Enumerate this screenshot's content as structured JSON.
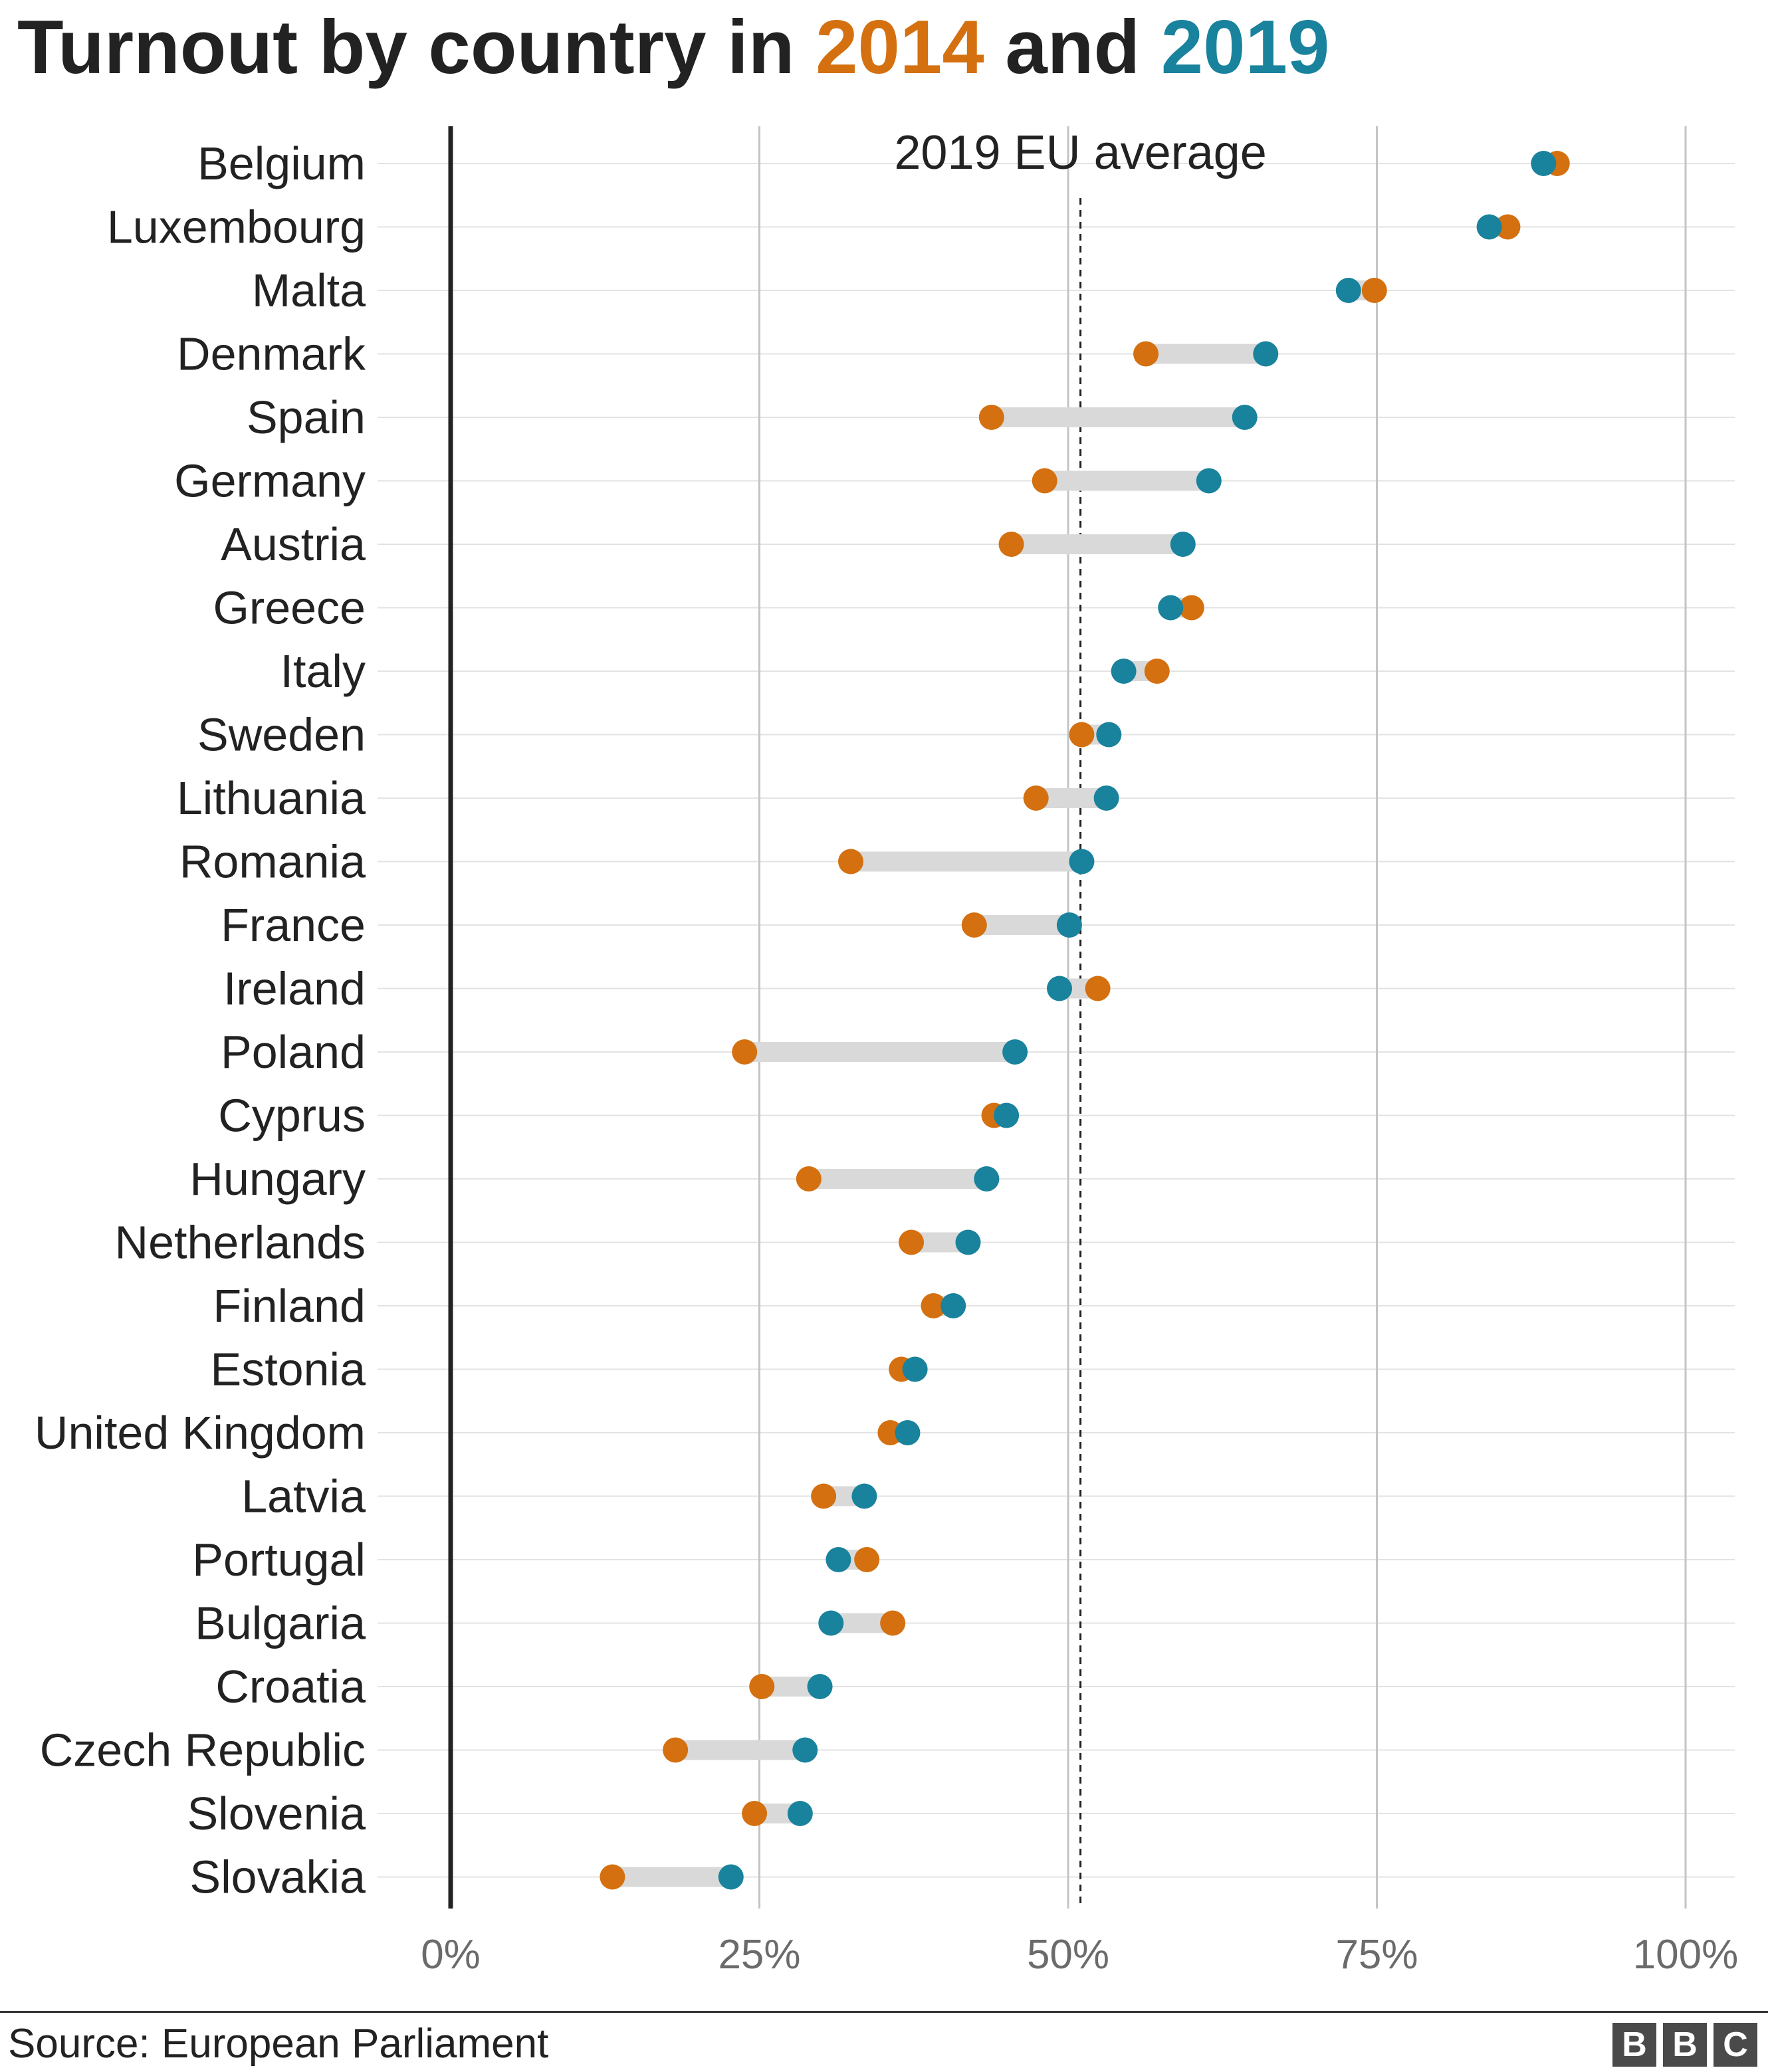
{
  "title": {
    "prefix": "Turnout by country in ",
    "year1": "2014",
    "middle": " and ",
    "year2": "2019"
  },
  "colors": {
    "y2014": "#d4700f",
    "y2019": "#19829c",
    "connector": "#d9d9d9",
    "grid": "#c4c4c4",
    "text": "#222222",
    "tick": "#6b6b6b"
  },
  "chart_data": {
    "type": "dumbbell",
    "x_ticks": [
      0,
      25,
      50,
      75,
      100
    ],
    "x_tick_labels": [
      "0%",
      "25%",
      "50%",
      "75%",
      "100%"
    ],
    "xlim": [
      0,
      100
    ],
    "reference_line": {
      "label": "2019 EU average",
      "value": 51
    },
    "series": [
      {
        "name": "2014",
        "key": "y2014"
      },
      {
        "name": "2019",
        "key": "y2019"
      }
    ],
    "countries": [
      {
        "name": "Belgium",
        "y2014": 89.6,
        "y2019": 88.5
      },
      {
        "name": "Luxembourg",
        "y2014": 85.6,
        "y2019": 84.1
      },
      {
        "name": "Malta",
        "y2014": 74.8,
        "y2019": 72.7
      },
      {
        "name": "Denmark",
        "y2014": 56.3,
        "y2019": 66.0
      },
      {
        "name": "Spain",
        "y2014": 43.8,
        "y2019": 64.3
      },
      {
        "name": "Germany",
        "y2014": 48.1,
        "y2019": 61.4
      },
      {
        "name": "Austria",
        "y2014": 45.4,
        "y2019": 59.3
      },
      {
        "name": "Greece",
        "y2014": 60.0,
        "y2019": 58.3
      },
      {
        "name": "Italy",
        "y2014": 57.2,
        "y2019": 54.5
      },
      {
        "name": "Sweden",
        "y2014": 51.1,
        "y2019": 53.3
      },
      {
        "name": "Lithuania",
        "y2014": 47.4,
        "y2019": 53.1
      },
      {
        "name": "Romania",
        "y2014": 32.4,
        "y2019": 51.1
      },
      {
        "name": "France",
        "y2014": 42.4,
        "y2019": 50.1
      },
      {
        "name": "Ireland",
        "y2014": 52.4,
        "y2019": 49.3
      },
      {
        "name": "Poland",
        "y2014": 23.8,
        "y2019": 45.7
      },
      {
        "name": "Cyprus",
        "y2014": 44.0,
        "y2019": 45.0
      },
      {
        "name": "Hungary",
        "y2014": 29.0,
        "y2019": 43.4
      },
      {
        "name": "Netherlands",
        "y2014": 37.3,
        "y2019": 41.9
      },
      {
        "name": "Finland",
        "y2014": 39.1,
        "y2019": 40.7
      },
      {
        "name": "Estonia",
        "y2014": 36.5,
        "y2019": 37.6
      },
      {
        "name": "United Kingdom",
        "y2014": 35.6,
        "y2019": 37.0
      },
      {
        "name": "Latvia",
        "y2014": 30.2,
        "y2019": 33.5
      },
      {
        "name": "Portugal",
        "y2014": 33.7,
        "y2019": 31.4
      },
      {
        "name": "Bulgaria",
        "y2014": 35.8,
        "y2019": 30.8
      },
      {
        "name": "Croatia",
        "y2014": 25.2,
        "y2019": 29.9
      },
      {
        "name": "Czech Republic",
        "y2014": 18.2,
        "y2019": 28.7
      },
      {
        "name": "Slovenia",
        "y2014": 24.6,
        "y2019": 28.3
      },
      {
        "name": "Slovakia",
        "y2014": 13.1,
        "y2019": 22.7
      }
    ]
  },
  "footer": {
    "source": "Source: European Parliament",
    "logo": [
      "B",
      "B",
      "C"
    ]
  }
}
